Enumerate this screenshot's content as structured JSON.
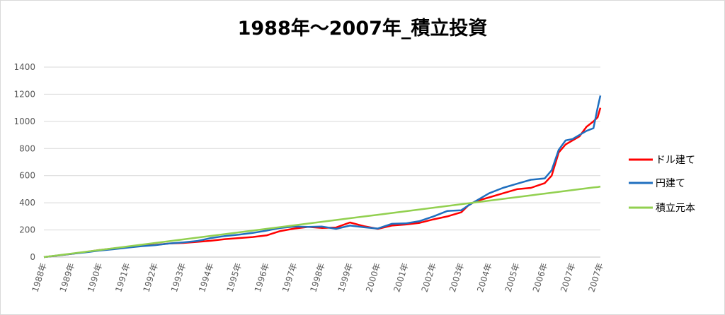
{
  "chart_data": {
    "type": "line",
    "title": "1988年～2007年_積立投資",
    "ylim": [
      0,
      1400
    ],
    "y_ticks": [
      "0",
      "200",
      "400",
      "600",
      "800",
      "1000",
      "1200",
      "1400"
    ],
    "categories": [
      "1988年",
      "1989年",
      "1990年",
      "1991年",
      "1992年",
      "1993年",
      "1994年",
      "1995年",
      "1996年",
      "1997年",
      "1998年",
      "1999年",
      "2000年",
      "2001年",
      "2002年",
      "2003年",
      "2004年",
      "2005年",
      "2006年",
      "2007年",
      "2007年"
    ],
    "x": [
      1988.0,
      1988.5,
      1989.0,
      1989.5,
      1990.0,
      1990.5,
      1991.0,
      1991.5,
      1992.0,
      1992.5,
      1993.0,
      1993.5,
      1994.0,
      1994.5,
      1995.0,
      1995.5,
      1996.0,
      1996.5,
      1997.0,
      1997.5,
      1998.0,
      1998.5,
      1999.0,
      1999.5,
      2000.0,
      2000.5,
      2001.0,
      2001.5,
      2002.0,
      2002.5,
      2003.0,
      2003.25,
      2003.5,
      2004.0,
      2004.5,
      2005.0,
      2005.5,
      2006.0,
      2006.25,
      2006.5,
      2006.75,
      2007.0,
      2007.25,
      2007.5,
      2007.75,
      2007.9,
      2008.0
    ],
    "series": [
      {
        "name": "ドル建て",
        "color": "#ff0000",
        "values": [
          0,
          12,
          24,
          38,
          52,
          64,
          72,
          84,
          90,
          100,
          104,
          112,
          120,
          132,
          140,
          148,
          160,
          192,
          210,
          222,
          215,
          218,
          255,
          228,
          208,
          232,
          240,
          252,
          278,
          300,
          330,
          380,
          410,
          440,
          470,
          500,
          510,
          545,
          600,
          770,
          830,
          860,
          890,
          960,
          1000,
          1030,
          1100
        ]
      },
      {
        "name": "円建て",
        "color": "#1f6fbf",
        "values": [
          0,
          12,
          24,
          35,
          48,
          58,
          70,
          80,
          88,
          100,
          108,
          118,
          140,
          155,
          165,
          178,
          195,
          215,
          225,
          222,
          225,
          208,
          232,
          220,
          210,
          245,
          248,
          265,
          300,
          340,
          345,
          380,
          410,
          470,
          510,
          540,
          570,
          580,
          640,
          790,
          860,
          870,
          900,
          930,
          950,
          1100,
          1190
        ]
      },
      {
        "name": "積立元本",
        "color": "#92d050",
        "values": [
          0,
          13,
          26,
          39,
          52,
          65,
          78,
          91,
          104,
          117,
          130,
          143,
          156,
          169,
          182,
          195,
          208,
          221,
          234,
          247,
          260,
          273,
          286,
          299,
          312,
          325,
          338,
          351,
          364,
          377,
          390,
          396,
          403,
          416,
          429,
          442,
          455,
          468,
          474,
          481,
          487,
          494,
          500,
          507,
          513,
          516,
          520
        ]
      }
    ],
    "legend_position": "right",
    "grid": true
  }
}
